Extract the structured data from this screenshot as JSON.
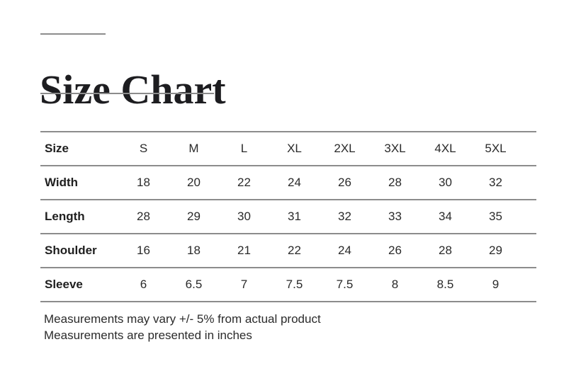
{
  "header": {
    "title": "Size Chart"
  },
  "size_chart": {
    "columns": [
      "Size",
      "S",
      "M",
      "L",
      "XL",
      "2XL",
      "3XL",
      "4XL",
      "5XL"
    ],
    "rows": [
      {
        "label": "Width",
        "values": [
          "18",
          "20",
          "22",
          "24",
          "26",
          "28",
          "30",
          "32"
        ]
      },
      {
        "label": "Length",
        "values": [
          "28",
          "29",
          "30",
          "31",
          "32",
          "33",
          "34",
          "35"
        ]
      },
      {
        "label": "Shoulder",
        "values": [
          "16",
          "18",
          "21",
          "22",
          "24",
          "26",
          "28",
          "29"
        ]
      },
      {
        "label": "Sleeve",
        "values": [
          "6",
          "6.5",
          "7",
          "7.5",
          "7.5",
          "8",
          "8.5",
          "9"
        ]
      }
    ]
  },
  "notes": {
    "line1": "Measurements may vary +/- 5% from actual product",
    "line2": "Measurements are presented in inches"
  },
  "colors": {
    "background": "#ffffff",
    "rule_line": "#8c8c8c",
    "title_text": "#1d1d20",
    "body_text": "#2a2a2a"
  }
}
